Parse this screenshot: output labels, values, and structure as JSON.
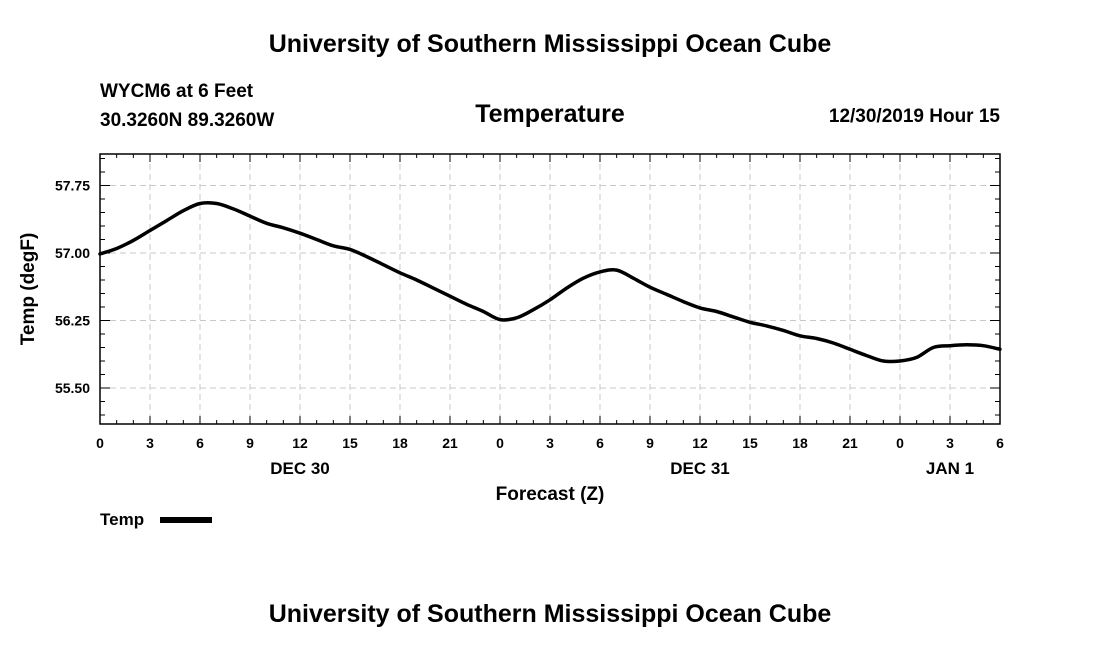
{
  "header": {
    "title_top": "University of Southern Mississippi Ocean Cube",
    "station_line1": "WYCM6 at 6 Feet",
    "station_line2": "30.3260N 89.3260W",
    "run_time": "12/30/2019 Hour 15",
    "title_bottom": "University of Southern Mississippi Ocean Cube"
  },
  "chart_data": {
    "type": "line",
    "title": "Temperature",
    "xlabel": "Forecast (Z)",
    "ylabel": "Temp (degF)",
    "x_unit": "hours since DEC 30 00Z",
    "xlim": [
      0,
      54
    ],
    "ylim": [
      55.1,
      58.1
    ],
    "x_ticks": [
      0,
      3,
      6,
      9,
      12,
      15,
      18,
      21,
      24,
      27,
      30,
      33,
      36,
      39,
      42,
      45,
      48,
      51,
      54
    ],
    "x_tick_labels": [
      "0",
      "3",
      "6",
      "9",
      "12",
      "15",
      "18",
      "21",
      "0",
      "3",
      "6",
      "9",
      "12",
      "15",
      "18",
      "21",
      "0",
      "3",
      "6"
    ],
    "date_labels": [
      {
        "x": 12,
        "label": "DEC 30"
      },
      {
        "x": 36,
        "label": "DEC 31"
      },
      {
        "x": 51,
        "label": "JAN 1"
      }
    ],
    "y_ticks": [
      55.5,
      56.25,
      57.0,
      57.75
    ],
    "y_tick_labels": [
      "55.50",
      "56.25",
      "57.00",
      "57.75"
    ],
    "grid": true,
    "series": [
      {
        "name": "Temp",
        "x": [
          0,
          1,
          2,
          3,
          4,
          5,
          6,
          7,
          8,
          9,
          10,
          11,
          12,
          13,
          14,
          15,
          16,
          17,
          18,
          19,
          20,
          21,
          22,
          23,
          24,
          25,
          26,
          27,
          28,
          29,
          30,
          31,
          32,
          33,
          34,
          35,
          36,
          37,
          38,
          39,
          40,
          41,
          42,
          43,
          44,
          45,
          46,
          47,
          48,
          49,
          50,
          51,
          52,
          53,
          54
        ],
        "values": [
          56.99,
          57.05,
          57.14,
          57.25,
          57.36,
          57.47,
          57.55,
          57.55,
          57.49,
          57.41,
          57.33,
          57.28,
          57.22,
          57.15,
          57.08,
          57.04,
          56.96,
          56.87,
          56.78,
          56.7,
          56.61,
          56.52,
          56.43,
          56.35,
          56.26,
          56.28,
          56.37,
          56.48,
          56.61,
          56.72,
          56.79,
          56.81,
          56.72,
          56.62,
          56.54,
          56.46,
          56.39,
          56.35,
          56.29,
          56.23,
          56.19,
          56.14,
          56.08,
          56.05,
          56.0,
          55.93,
          55.86,
          55.8,
          55.8,
          55.84,
          55.95,
          55.97,
          55.98,
          55.97,
          55.93
        ]
      }
    ],
    "legend": {
      "label": "Temp",
      "placement": "bottom-left"
    }
  }
}
